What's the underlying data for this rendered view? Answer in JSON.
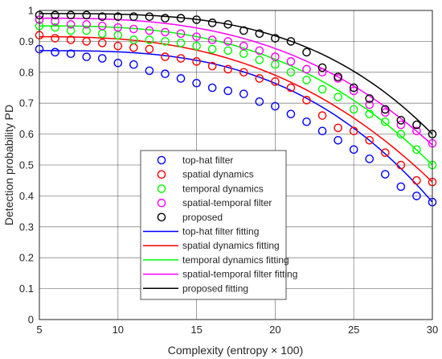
{
  "chart_data": {
    "type": "scatter",
    "title": "",
    "xlabel": "Complexity (entropy × 100)",
    "ylabel": "Detection probability PD",
    "xlim": [
      5,
      30
    ],
    "ylim": [
      0,
      1
    ],
    "xticks": [
      "5",
      "10",
      "15",
      "20",
      "25",
      "30"
    ],
    "yticks": [
      "0",
      "0.1",
      "0.2",
      "0.3",
      "0.4",
      "0.5",
      "0.6",
      "0.7",
      "0.8",
      "0.9",
      "1"
    ],
    "grid": true,
    "legend_position": "bottom-center",
    "x": [
      5,
      6,
      7,
      8,
      9,
      10,
      11,
      12,
      13,
      14,
      15,
      16,
      17,
      18,
      19,
      20,
      21,
      22,
      23,
      24,
      25,
      26,
      27,
      28,
      29,
      30
    ],
    "series": [
      {
        "name": "top-hat filter",
        "color": "#0000ff",
        "marker": "circle",
        "values": [
          0.875,
          0.865,
          0.86,
          0.85,
          0.845,
          0.83,
          0.825,
          0.805,
          0.795,
          0.78,
          0.765,
          0.75,
          0.74,
          0.73,
          0.705,
          0.69,
          0.665,
          0.64,
          0.61,
          0.58,
          0.55,
          0.52,
          0.47,
          0.43,
          0.4,
          0.38
        ]
      },
      {
        "name": "spatial dynamics",
        "color": "#ff0000",
        "marker": "circle",
        "values": [
          0.92,
          0.91,
          0.905,
          0.9,
          0.895,
          0.885,
          0.88,
          0.875,
          0.85,
          0.845,
          0.835,
          0.82,
          0.81,
          0.8,
          0.78,
          0.77,
          0.75,
          0.71,
          0.66,
          0.62,
          0.61,
          0.58,
          0.54,
          0.5,
          0.45,
          0.445
        ]
      },
      {
        "name": "temporal dynamics",
        "color": "#00ff00",
        "marker": "circle",
        "values": [
          0.95,
          0.945,
          0.935,
          0.935,
          0.925,
          0.92,
          0.905,
          0.905,
          0.9,
          0.895,
          0.885,
          0.875,
          0.87,
          0.86,
          0.84,
          0.825,
          0.8,
          0.775,
          0.745,
          0.72,
          0.68,
          0.665,
          0.64,
          0.6,
          0.55,
          0.5
        ]
      },
      {
        "name": "spatial-temporal filter",
        "color": "#ff00ff",
        "marker": "circle",
        "values": [
          0.97,
          0.965,
          0.955,
          0.955,
          0.95,
          0.945,
          0.94,
          0.935,
          0.93,
          0.925,
          0.915,
          0.905,
          0.9,
          0.885,
          0.87,
          0.85,
          0.835,
          0.81,
          0.8,
          0.78,
          0.74,
          0.695,
          0.67,
          0.63,
          0.61,
          0.57
        ]
      },
      {
        "name": "proposed",
        "color": "#000000",
        "marker": "circle",
        "values": [
          0.985,
          0.985,
          0.985,
          0.985,
          0.98,
          0.98,
          0.98,
          0.98,
          0.975,
          0.975,
          0.97,
          0.96,
          0.955,
          0.935,
          0.925,
          0.91,
          0.9,
          0.865,
          0.815,
          0.785,
          0.75,
          0.715,
          0.68,
          0.645,
          0.63,
          0.6
        ]
      }
    ],
    "fits": [
      {
        "name": "top-hat filter fitting",
        "color": "#0000ff",
        "a": 0.87,
        "b": 0.49,
        "p": 3
      },
      {
        "name": "spatial dynamics fitting",
        "color": "#ff0000",
        "a": 0.915,
        "b": 0.47,
        "p": 2.6
      },
      {
        "name": "temporal dynamics fitting",
        "color": "#00ff00",
        "a": 0.95,
        "b": 0.45,
        "p": 2.8
      },
      {
        "name": "spatial-temporal filter fitting",
        "color": "#ff00ff",
        "a": 0.975,
        "b": 0.41,
        "p": 2.8
      },
      {
        "name": "proposed fitting",
        "color": "#000000",
        "a": 0.99,
        "b": 0.39,
        "p": 3.3
      }
    ]
  }
}
